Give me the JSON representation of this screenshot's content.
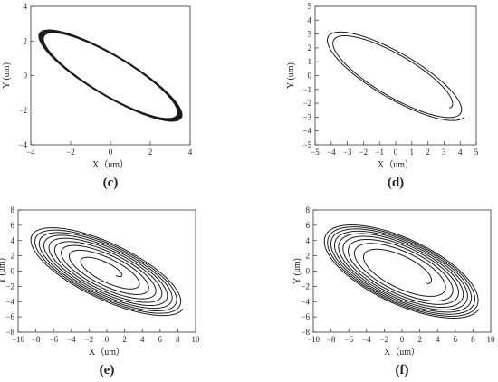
{
  "chart_data": [
    {
      "type": "line",
      "panel_label": "(c)",
      "xlabel": "X（um）",
      "ylabel": "Y (um)",
      "xlim": [
        -4,
        4
      ],
      "ylim": [
        -4,
        4
      ],
      "xticks": [
        -4,
        -2,
        0,
        2,
        4
      ],
      "yticks": [
        -4,
        -2,
        0,
        2,
        4
      ],
      "grid": false,
      "description_shape": "thin tilted elliptical orbit band, semi-major ~4.2 um along the -35° diagonal, semi-minor ~1.1 um",
      "orbit": {
        "a": 4.2,
        "b": 1.1,
        "angle_deg": -35,
        "band": [
          0.96,
          1.03
        ]
      }
    },
    {
      "type": "line",
      "panel_label": "(d)",
      "xlabel": "X（um）",
      "ylabel": "Y (um)",
      "xlim": [
        -5,
        5
      ],
      "ylim": [
        -5,
        5
      ],
      "xticks": [
        -5,
        -4,
        -3,
        -2,
        -1,
        0,
        1,
        2,
        3,
        4,
        5
      ],
      "yticks": [
        -5,
        -4,
        -3,
        -2,
        -1,
        0,
        1,
        2,
        3,
        4,
        5
      ],
      "grid": false,
      "orbit": {
        "a": 5.2,
        "b": 1.6,
        "angle_deg": -35,
        "band": [
          0.78,
          1.0
        ]
      }
    },
    {
      "type": "line",
      "panel_label": "(e)",
      "xlabel": "X（um）",
      "ylabel": "Y (um)",
      "xlim": [
        -10,
        10
      ],
      "ylim": [
        -8,
        8
      ],
      "xticks": [
        -10,
        -8,
        -6,
        -4,
        -2,
        0,
        2,
        4,
        6,
        8,
        10
      ],
      "yticks": [
        -8,
        -6,
        -4,
        -2,
        0,
        2,
        4,
        6,
        8
      ],
      "grid": false,
      "orbit": {
        "a": 9.9,
        "b": 3.6,
        "angle_deg": -30,
        "band": [
          0.12,
          1.0
        ]
      }
    },
    {
      "type": "line",
      "panel_label": "(f)",
      "xlabel": "X（um）",
      "ylabel": "Y (um)",
      "xlim": [
        -10,
        10
      ],
      "ylim": [
        -8,
        8
      ],
      "xticks": [
        -10,
        -8,
        -6,
        -4,
        -2,
        0,
        2,
        4,
        6,
        8,
        10
      ],
      "yticks": [
        -8,
        -6,
        -4,
        -2,
        0,
        2,
        4,
        6,
        8
      ],
      "grid": false,
      "orbit": {
        "a": 10.0,
        "b": 4.2,
        "angle_deg": -30,
        "band": [
          0.32,
          1.0
        ]
      }
    }
  ]
}
